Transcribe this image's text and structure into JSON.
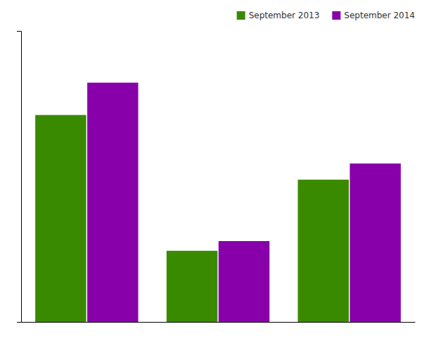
{
  "chart_data": {
    "type": "bar",
    "categories": [
      null,
      null,
      null
    ],
    "series": [
      {
        "name": "September 2013",
        "color": "#3a8a00",
        "values": [
          3.2,
          1.1,
          2.2
        ]
      },
      {
        "name": "September 2014",
        "color": "#8800aa",
        "values": [
          3.7,
          1.25,
          2.45
        ]
      }
    ],
    "ylim": [
      0,
      4.5
    ],
    "grid": false,
    "legend": "upper right",
    "tick_labels": false
  }
}
